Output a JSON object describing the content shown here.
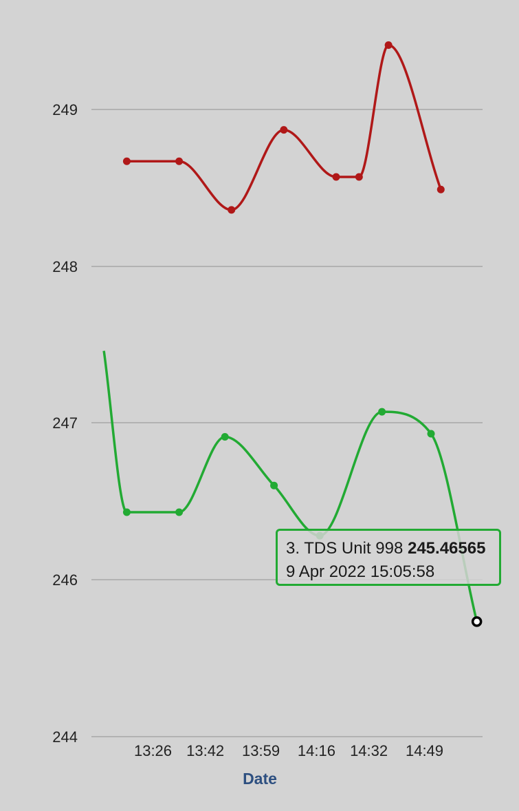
{
  "chart_data": {
    "type": "line",
    "xlabel": "Date",
    "ylabel": "",
    "y_ticks": [
      "244",
      "246",
      "247",
      "248",
      "249"
    ],
    "x_ticks": [
      "13:26",
      "13:42",
      "13:59",
      "14:16",
      "14:32",
      "14:49"
    ],
    "grid": true,
    "curve": "smooth",
    "series": [
      {
        "color": "#b01818",
        "points": [
          {
            "x": "13:18",
            "y": 248.67
          },
          {
            "x": "13:34",
            "y": 248.67
          },
          {
            "x": "13:50",
            "y": 248.36
          },
          {
            "x": "14:06",
            "y": 248.87
          },
          {
            "x": "14:22",
            "y": 248.57
          },
          {
            "x": "14:29",
            "y": 248.57
          },
          {
            "x": "14:38",
            "y": 249.41
          },
          {
            "x": "14:54",
            "y": 248.49
          }
        ]
      },
      {
        "name": "3. TDS Unit 998",
        "color": "#22aa33",
        "points": [
          {
            "x": "13:11",
            "y": 247.46
          },
          {
            "x": "13:18",
            "y": 246.43
          },
          {
            "x": "13:34",
            "y": 246.43
          },
          {
            "x": "13:48",
            "y": 246.91
          },
          {
            "x": "14:03",
            "y": 246.6
          },
          {
            "x": "14:17",
            "y": 246.28
          },
          {
            "x": "14:36",
            "y": 247.07
          },
          {
            "x": "14:51",
            "y": 246.93
          },
          {
            "x": "15:05",
            "y": 245.46565
          }
        ]
      }
    ],
    "tooltip": {
      "series": "3. TDS Unit 998",
      "value": "245.46565",
      "date": "9 Apr 2022 15:05:58"
    }
  },
  "colors": {
    "background": "#d3d3d3",
    "grid": "#a8a8a8",
    "axis_title": "#2d4f80"
  }
}
